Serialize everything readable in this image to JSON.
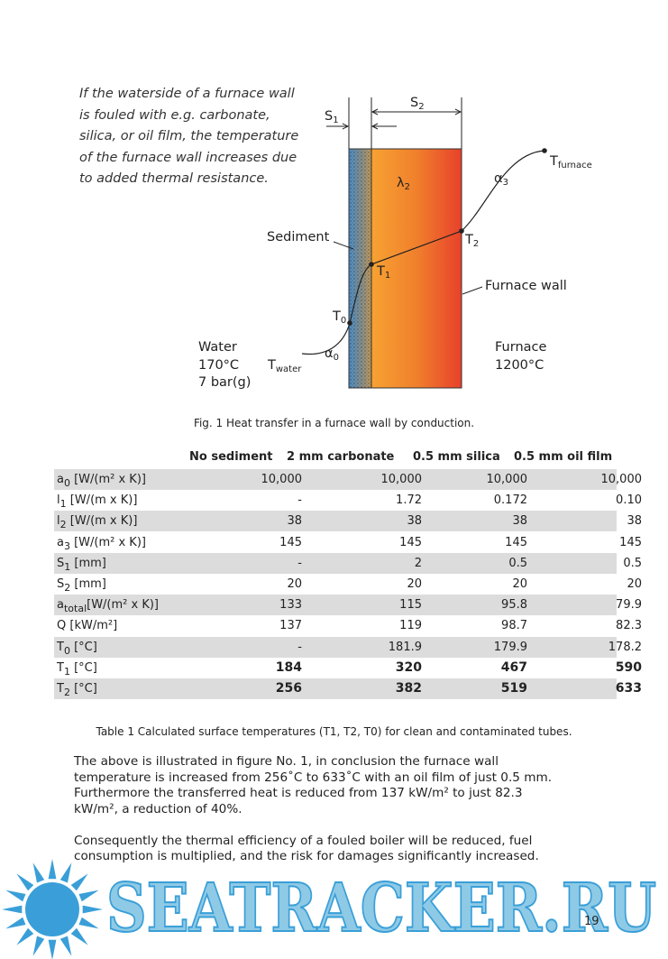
{
  "intro": [
    "If the waterside of a furnace wall",
    "is fouled with e.g. carbonate,",
    "silica, or oil film, the temperature",
    "of the furnace wall increases due",
    "to added thermal resistance."
  ],
  "figure": {
    "s1": {
      "main": "S",
      "sub": "1"
    },
    "s2": {
      "main": "S",
      "sub": "2"
    },
    "lambda2": {
      "main": "λ",
      "sub": "2"
    },
    "alpha3": {
      "main": "α",
      "sub": "3"
    },
    "t_furnace": {
      "main": "T",
      "sub": "furnace"
    },
    "sediment": "Sediment",
    "t1": {
      "main": "T",
      "sub": "1"
    },
    "t2": {
      "main": "T",
      "sub": "2"
    },
    "furnace_wall": "Furnace wall",
    "t0": {
      "main": "T",
      "sub": "0"
    },
    "water": "Water",
    "water_temp": "170°C",
    "water_pressure": "7 bar(g)",
    "t_water": {
      "main": "T",
      "sub": "water"
    },
    "alpha0": {
      "main": "α",
      "sub": "0"
    },
    "furnace": "Furnace",
    "furnace_temp": "1200°C",
    "caption": "Fig. 1 Heat transfer in a furnace wall by conduction."
  },
  "table": {
    "header": [
      "No sediment",
      "2 mm carbonate",
      "0.5 mm silica",
      "0.5 mm oil film"
    ],
    "rows": [
      {
        "label": {
          "main": "a",
          "sub": "0",
          "unit": " [W/(m² x K)]"
        },
        "values": [
          "10,000",
          "10,000",
          "10,000",
          "10,000"
        ]
      },
      {
        "label": {
          "main": "l",
          "sub": "1",
          "unit": " [W/(m x K)]"
        },
        "values": [
          "-",
          "1.72",
          "0.172",
          "0.10"
        ]
      },
      {
        "label": {
          "main": "l",
          "sub": "2",
          "unit": " [W/(m x K)]"
        },
        "values": [
          "38",
          "38",
          "38",
          "38"
        ]
      },
      {
        "label": {
          "main": "a",
          "sub": "3",
          "unit": " [W/(m² x K)]"
        },
        "values": [
          "145",
          "145",
          "145",
          "145"
        ]
      },
      {
        "label": {
          "main": "S",
          "sub": "1",
          "unit": " [mm]"
        },
        "values": [
          "-",
          "2",
          "0.5",
          "0.5"
        ]
      },
      {
        "label": {
          "main": "S",
          "sub": "2",
          "unit": " [mm]"
        },
        "values": [
          "20",
          "20",
          "20",
          "20"
        ]
      },
      {
        "label": {
          "main": "a",
          "sub": "total",
          "unit": "[W/(m² x K)]"
        },
        "values": [
          "133",
          "115",
          "95.8",
          "79.9"
        ]
      },
      {
        "label": {
          "main": "Q",
          "sub": "",
          "unit": " [kW/m²]"
        },
        "values": [
          "137",
          "119",
          "98.7",
          "82.3"
        ]
      },
      {
        "label": {
          "main": "T",
          "sub": "0",
          "unit": " [°C]"
        },
        "values": [
          "-",
          "181.9",
          "179.9",
          "178.2"
        ]
      },
      {
        "label": {
          "main": "T",
          "sub": "1",
          "unit": " [°C]"
        },
        "values": [
          "184",
          "320",
          "467",
          "590"
        ]
      },
      {
        "label": {
          "main": "T",
          "sub": "2",
          "unit": " [°C]"
        },
        "values": [
          "256",
          "382",
          "519",
          "633"
        ]
      }
    ],
    "caption": "Table 1 Calculated surface temperatures (T1, T2, T0) for clean and contaminated tubes."
  },
  "paragraphs": [
    [
      "The above is illustrated in figure No. 1, in conclusion the furnace wall",
      "temperature is increased from 256˚C to 633˚C with an oil film of just 0.5 mm.",
      "Furthermore the transferred heat is reduced from 137 kW/m² to just 82.3",
      "kW/m², a reduction of 40%."
    ],
    [
      "Consequently the thermal efficiency of a fouled boiler will be reduced, fuel",
      "consumption is multiplied, and the risk for damages significantly increased."
    ]
  ],
  "watermark": "SEATRACKER.RU",
  "page_number": "19"
}
